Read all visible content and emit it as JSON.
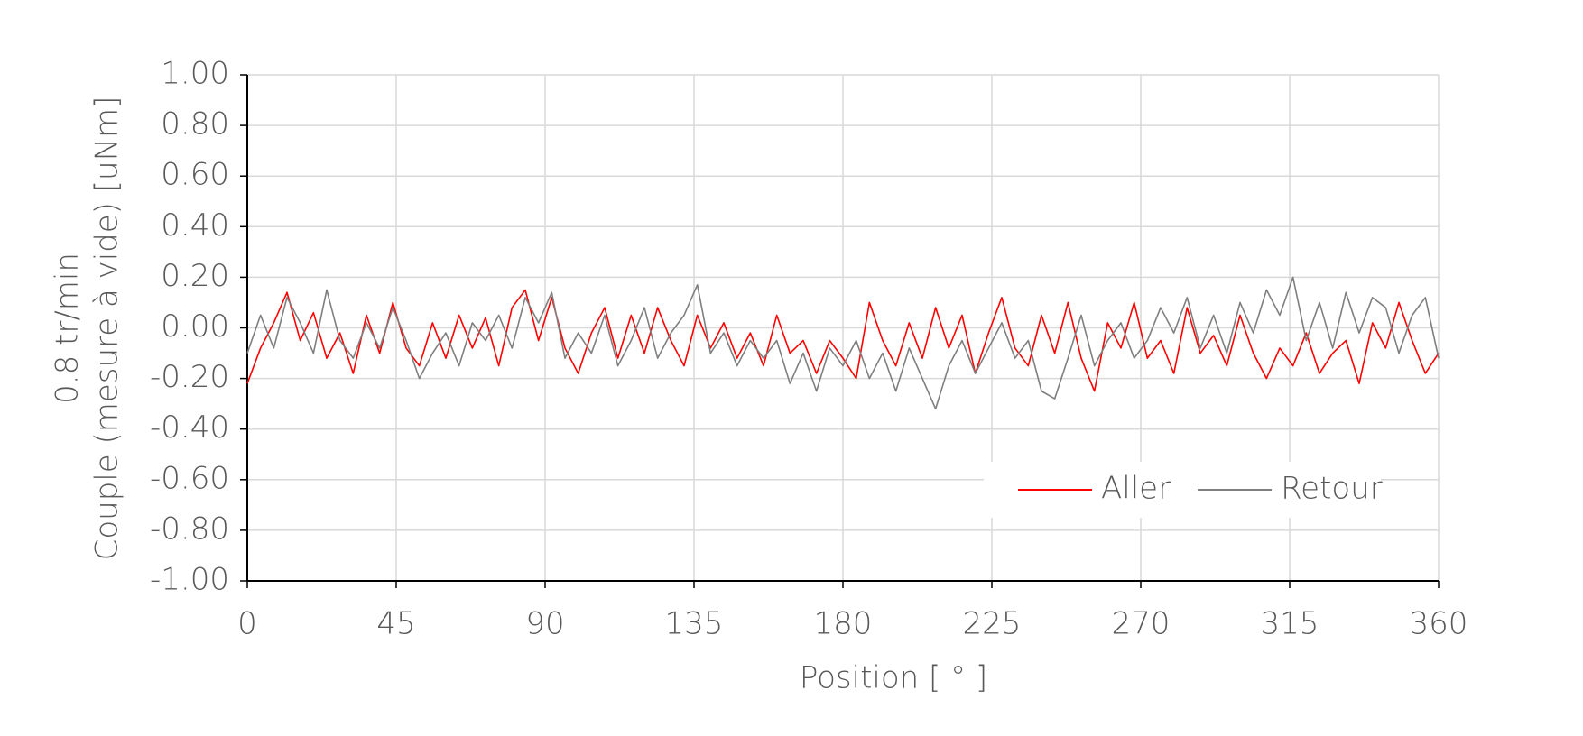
{
  "chart_data": {
    "type": "line",
    "xlabel": "Position [ ° ]",
    "ylabel": [
      "0.8 tr/min",
      "Couple (mesure à vide) [uNm]"
    ],
    "x": [
      0,
      4,
      8,
      12,
      16,
      20,
      24,
      28,
      32,
      36,
      40,
      44,
      48,
      52,
      56,
      60,
      64,
      68,
      72,
      76,
      80,
      84,
      88,
      92,
      96,
      100,
      104,
      108,
      112,
      116,
      120,
      124,
      128,
      132,
      136,
      140,
      144,
      148,
      152,
      156,
      160,
      164,
      168,
      172,
      176,
      180,
      184,
      188,
      192,
      196,
      200,
      204,
      208,
      212,
      216,
      220,
      224,
      228,
      232,
      236,
      240,
      244,
      248,
      252,
      256,
      260,
      264,
      268,
      272,
      276,
      280,
      284,
      288,
      292,
      296,
      300,
      304,
      308,
      312,
      316,
      320,
      324,
      328,
      332,
      336,
      340,
      344,
      348,
      352,
      356,
      360
    ],
    "series": [
      {
        "name": "Aller",
        "color": "#ff0000",
        "values": [
          -0.22,
          -0.08,
          0.02,
          0.14,
          -0.05,
          0.06,
          -0.12,
          -0.02,
          -0.18,
          0.05,
          -0.1,
          0.1,
          -0.08,
          -0.15,
          0.02,
          -0.12,
          0.05,
          -0.08,
          0.04,
          -0.15,
          0.08,
          0.15,
          -0.05,
          0.12,
          -0.08,
          -0.18,
          -0.02,
          0.08,
          -0.12,
          0.05,
          -0.1,
          0.08,
          -0.05,
          -0.15,
          0.05,
          -0.08,
          0.02,
          -0.12,
          -0.02,
          -0.15,
          0.05,
          -0.1,
          -0.05,
          -0.18,
          -0.05,
          -0.12,
          -0.2,
          0.1,
          -0.05,
          -0.15,
          0.02,
          -0.12,
          0.08,
          -0.08,
          0.05,
          -0.18,
          -0.02,
          0.12,
          -0.08,
          -0.15,
          0.05,
          -0.1,
          0.1,
          -0.12,
          -0.25,
          0.02,
          -0.08,
          0.1,
          -0.12,
          -0.05,
          -0.18,
          0.08,
          -0.1,
          -0.03,
          -0.15,
          0.05,
          -0.1,
          -0.2,
          -0.08,
          -0.15,
          -0.02,
          -0.18,
          -0.1,
          -0.05,
          -0.22,
          0.02,
          -0.08,
          0.1,
          -0.05,
          -0.18,
          -0.1
        ]
      },
      {
        "name": "Retour",
        "color": "#7f7f7f",
        "values": [
          -0.1,
          0.05,
          -0.08,
          0.12,
          0.02,
          -0.1,
          0.15,
          -0.05,
          -0.12,
          0.02,
          -0.08,
          0.08,
          -0.05,
          -0.2,
          -0.1,
          -0.02,
          -0.15,
          0.02,
          -0.05,
          0.05,
          -0.08,
          0.12,
          0.02,
          0.14,
          -0.12,
          -0.02,
          -0.1,
          0.05,
          -0.15,
          -0.05,
          0.08,
          -0.12,
          -0.02,
          0.05,
          0.17,
          -0.1,
          -0.02,
          -0.15,
          -0.05,
          -0.12,
          -0.05,
          -0.22,
          -0.1,
          -0.25,
          -0.08,
          -0.15,
          -0.05,
          -0.2,
          -0.1,
          -0.25,
          -0.08,
          -0.2,
          -0.32,
          -0.15,
          -0.05,
          -0.18,
          -0.08,
          0.02,
          -0.12,
          -0.05,
          -0.25,
          -0.28,
          -0.12,
          0.05,
          -0.15,
          -0.05,
          0.02,
          -0.12,
          -0.05,
          0.08,
          -0.02,
          0.12,
          -0.08,
          0.05,
          -0.1,
          0.1,
          -0.02,
          0.15,
          0.05,
          0.2,
          -0.05,
          0.1,
          -0.08,
          0.14,
          -0.02,
          0.12,
          0.08,
          -0.1,
          0.05,
          0.12,
          -0.12
        ]
      }
    ],
    "xlim": [
      0,
      360
    ],
    "xticks": [
      0,
      45,
      90,
      135,
      180,
      225,
      270,
      315,
      360
    ],
    "ylim": [
      -1,
      1
    ],
    "yticks": [
      {
        "value": -1,
        "label": "-1.00"
      },
      {
        "value": -0.8,
        "label": "-0.80"
      },
      {
        "value": -0.6,
        "label": "-0.60"
      },
      {
        "value": -0.4,
        "label": "-0.40"
      },
      {
        "value": -0.2,
        "label": "-0.20"
      },
      {
        "value": 0,
        "label": "0.00"
      },
      {
        "value": 0.2,
        "label": "0.20"
      },
      {
        "value": 0.4,
        "label": "0.40"
      },
      {
        "value": 0.6,
        "label": "0.60"
      },
      {
        "value": 0.8,
        "label": "0.80"
      },
      {
        "value": 1,
        "label": "1.00"
      }
    ],
    "grid": true,
    "legend": "lower right"
  }
}
